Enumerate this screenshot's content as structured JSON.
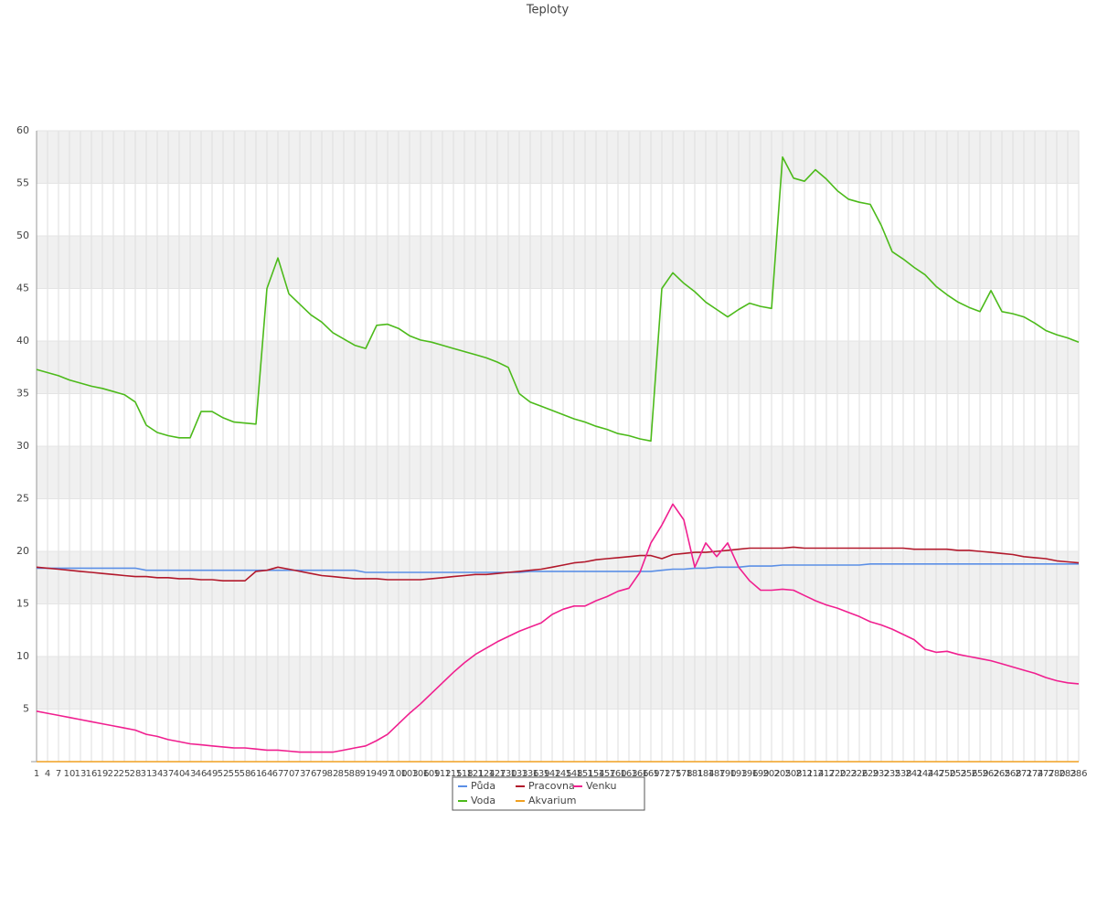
{
  "chart_data": {
    "type": "line",
    "title": "Teploty",
    "categories": [
      "1",
      "4",
      "7",
      "10",
      "13",
      "16",
      "19",
      "22",
      "25",
      "28",
      "31",
      "34",
      "37",
      "40",
      "43",
      "46",
      "49",
      "52",
      "55",
      "58",
      "61",
      "64",
      "67",
      "70",
      "73",
      "76",
      "79",
      "82",
      "85",
      "88",
      "91",
      "94",
      "97",
      "100",
      "103",
      "106",
      "109",
      "112",
      "115",
      "118",
      "121",
      "124",
      "127",
      "130",
      "133",
      "136",
      "139",
      "142",
      "145",
      "148",
      "151",
      "154",
      "157",
      "160",
      "163",
      "166",
      "169",
      "172",
      "175",
      "178",
      "181",
      "184",
      "187",
      "190",
      "193",
      "196",
      "199",
      "202",
      "205",
      "208",
      "211",
      "214",
      "217",
      "220",
      "223",
      "226",
      "229",
      "232",
      "235",
      "238",
      "241",
      "244",
      "247",
      "250",
      "253",
      "256",
      "259",
      "262",
      "265",
      "268",
      "271",
      "274",
      "277",
      "280",
      "283",
      "286"
    ],
    "series": [
      {
        "name": "Půda",
        "color": "#5b8fe6",
        "values": [
          18.4,
          18.4,
          18.4,
          18.4,
          18.4,
          18.4,
          18.4,
          18.4,
          18.4,
          18.4,
          18.2,
          18.2,
          18.2,
          18.2,
          18.2,
          18.2,
          18.2,
          18.2,
          18.2,
          18.2,
          18.2,
          18.2,
          18.2,
          18.2,
          18.2,
          18.2,
          18.2,
          18.2,
          18.2,
          18.2,
          18.0,
          18.0,
          18.0,
          18.0,
          18.0,
          18.0,
          18.0,
          18.0,
          18.0,
          18.0,
          18.0,
          18.0,
          18.0,
          18.0,
          18.0,
          18.1,
          18.1,
          18.1,
          18.1,
          18.1,
          18.1,
          18.1,
          18.1,
          18.1,
          18.1,
          18.1,
          18.1,
          18.2,
          18.3,
          18.3,
          18.4,
          18.4,
          18.5,
          18.5,
          18.5,
          18.6,
          18.6,
          18.6,
          18.7,
          18.7,
          18.7,
          18.7,
          18.7,
          18.7,
          18.7,
          18.7,
          18.8,
          18.8,
          18.8,
          18.8,
          18.8,
          18.8,
          18.8,
          18.8,
          18.8,
          18.8,
          18.8,
          18.8,
          18.8,
          18.8,
          18.8,
          18.8,
          18.8,
          18.8,
          18.8,
          18.8
        ]
      },
      {
        "name": "Voda",
        "color": "#4cba1a",
        "values": [
          37.3,
          37.0,
          36.7,
          36.3,
          36.0,
          35.7,
          35.5,
          35.2,
          34.9,
          34.2,
          32.0,
          31.3,
          31.0,
          30.8,
          30.8,
          33.3,
          33.3,
          32.7,
          32.3,
          32.2,
          32.1,
          45.0,
          47.9,
          44.5,
          43.5,
          42.5,
          41.8,
          40.8,
          40.2,
          39.6,
          39.3,
          41.5,
          41.6,
          41.2,
          40.5,
          40.1,
          39.9,
          39.6,
          39.3,
          39.0,
          38.7,
          38.4,
          38.0,
          37.5,
          35.0,
          34.2,
          33.8,
          33.4,
          33.0,
          32.6,
          32.3,
          31.9,
          31.6,
          31.2,
          31.0,
          30.7,
          30.5,
          45.0,
          46.5,
          45.5,
          44.7,
          43.7,
          43.0,
          42.3,
          43.0,
          43.6,
          43.3,
          43.1,
          57.5,
          55.5,
          55.2,
          56.3,
          55.4,
          54.3,
          53.5,
          53.2,
          53.0,
          51.0,
          48.5,
          47.8,
          47.0,
          46.3,
          45.2,
          44.4,
          43.7,
          43.2,
          42.8,
          44.8,
          42.8,
          42.6,
          42.3,
          41.7,
          41.0,
          40.6,
          40.3,
          39.9
        ]
      },
      {
        "name": "Pracovna",
        "color": "#b2182b",
        "values": [
          18.5,
          18.4,
          18.3,
          18.2,
          18.1,
          18.0,
          17.9,
          17.8,
          17.7,
          17.6,
          17.6,
          17.5,
          17.5,
          17.4,
          17.4,
          17.3,
          17.3,
          17.2,
          17.2,
          17.2,
          18.1,
          18.2,
          18.5,
          18.3,
          18.1,
          17.9,
          17.7,
          17.6,
          17.5,
          17.4,
          17.4,
          17.4,
          17.3,
          17.3,
          17.3,
          17.3,
          17.4,
          17.5,
          17.6,
          17.7,
          17.8,
          17.8,
          17.9,
          18.0,
          18.1,
          18.2,
          18.3,
          18.5,
          18.7,
          18.9,
          19.0,
          19.2,
          19.3,
          19.4,
          19.5,
          19.6,
          19.6,
          19.3,
          19.7,
          19.8,
          19.9,
          19.9,
          20.0,
          20.1,
          20.2,
          20.3,
          20.3,
          20.3,
          20.3,
          20.4,
          20.3,
          20.3,
          20.3,
          20.3,
          20.3,
          20.3,
          20.3,
          20.3,
          20.3,
          20.3,
          20.2,
          20.2,
          20.2,
          20.2,
          20.1,
          20.1,
          20.0,
          19.9,
          19.8,
          19.7,
          19.5,
          19.4,
          19.3,
          19.1,
          19.0,
          18.9
        ]
      },
      {
        "name": "Akvarium",
        "color": "#f0a020",
        "values": [
          0,
          0,
          0,
          0,
          0,
          0,
          0,
          0,
          0,
          0,
          0,
          0,
          0,
          0,
          0,
          0,
          0,
          0,
          0,
          0,
          0,
          0,
          0,
          0,
          0,
          0,
          0,
          0,
          0,
          0,
          0,
          0,
          0,
          0,
          0,
          0,
          0,
          0,
          0,
          0,
          0,
          0,
          0,
          0,
          0,
          0,
          0,
          0,
          0,
          0,
          0,
          0,
          0,
          0,
          0,
          0,
          0,
          0,
          0,
          0,
          0,
          0,
          0,
          0,
          0,
          0,
          0,
          0,
          0,
          0,
          0,
          0,
          0,
          0,
          0,
          0,
          0,
          0,
          0,
          0,
          0,
          0,
          0,
          0,
          0,
          0,
          0,
          0,
          0,
          0,
          0,
          0,
          0,
          0,
          0,
          0
        ]
      },
      {
        "name": "Venku",
        "color": "#f01f8f",
        "values": [
          4.8,
          4.6,
          4.4,
          4.2,
          4.0,
          3.8,
          3.6,
          3.4,
          3.2,
          3.0,
          2.6,
          2.4,
          2.1,
          1.9,
          1.7,
          1.6,
          1.5,
          1.4,
          1.3,
          1.3,
          1.2,
          1.1,
          1.1,
          1.0,
          0.9,
          0.9,
          0.9,
          0.9,
          1.1,
          1.3,
          1.5,
          2.0,
          2.6,
          3.6,
          4.6,
          5.5,
          6.5,
          7.5,
          8.5,
          9.4,
          10.2,
          10.8,
          11.4,
          11.9,
          12.4,
          12.8,
          13.2,
          14.0,
          14.5,
          14.8,
          14.8,
          15.3,
          15.7,
          16.2,
          16.5,
          18.0,
          20.8,
          22.5,
          24.5,
          23.0,
          18.5,
          20.8,
          19.5,
          20.8,
          18.5,
          17.2,
          16.3,
          16.3,
          16.4,
          16.3,
          15.8,
          15.3,
          14.9,
          14.6,
          14.2,
          13.8,
          13.3,
          13.0,
          12.6,
          12.1,
          11.6,
          10.7,
          10.4,
          10.5,
          10.2,
          10.0,
          9.8,
          9.6,
          9.3,
          9.0,
          8.7,
          8.4,
          8.0,
          7.7,
          7.5,
          7.4
        ]
      }
    ],
    "ylim": [
      0,
      60
    ],
    "yticks": [
      5,
      10,
      15,
      20,
      25,
      30,
      35,
      40,
      45,
      50,
      55,
      60
    ],
    "grid": true
  }
}
